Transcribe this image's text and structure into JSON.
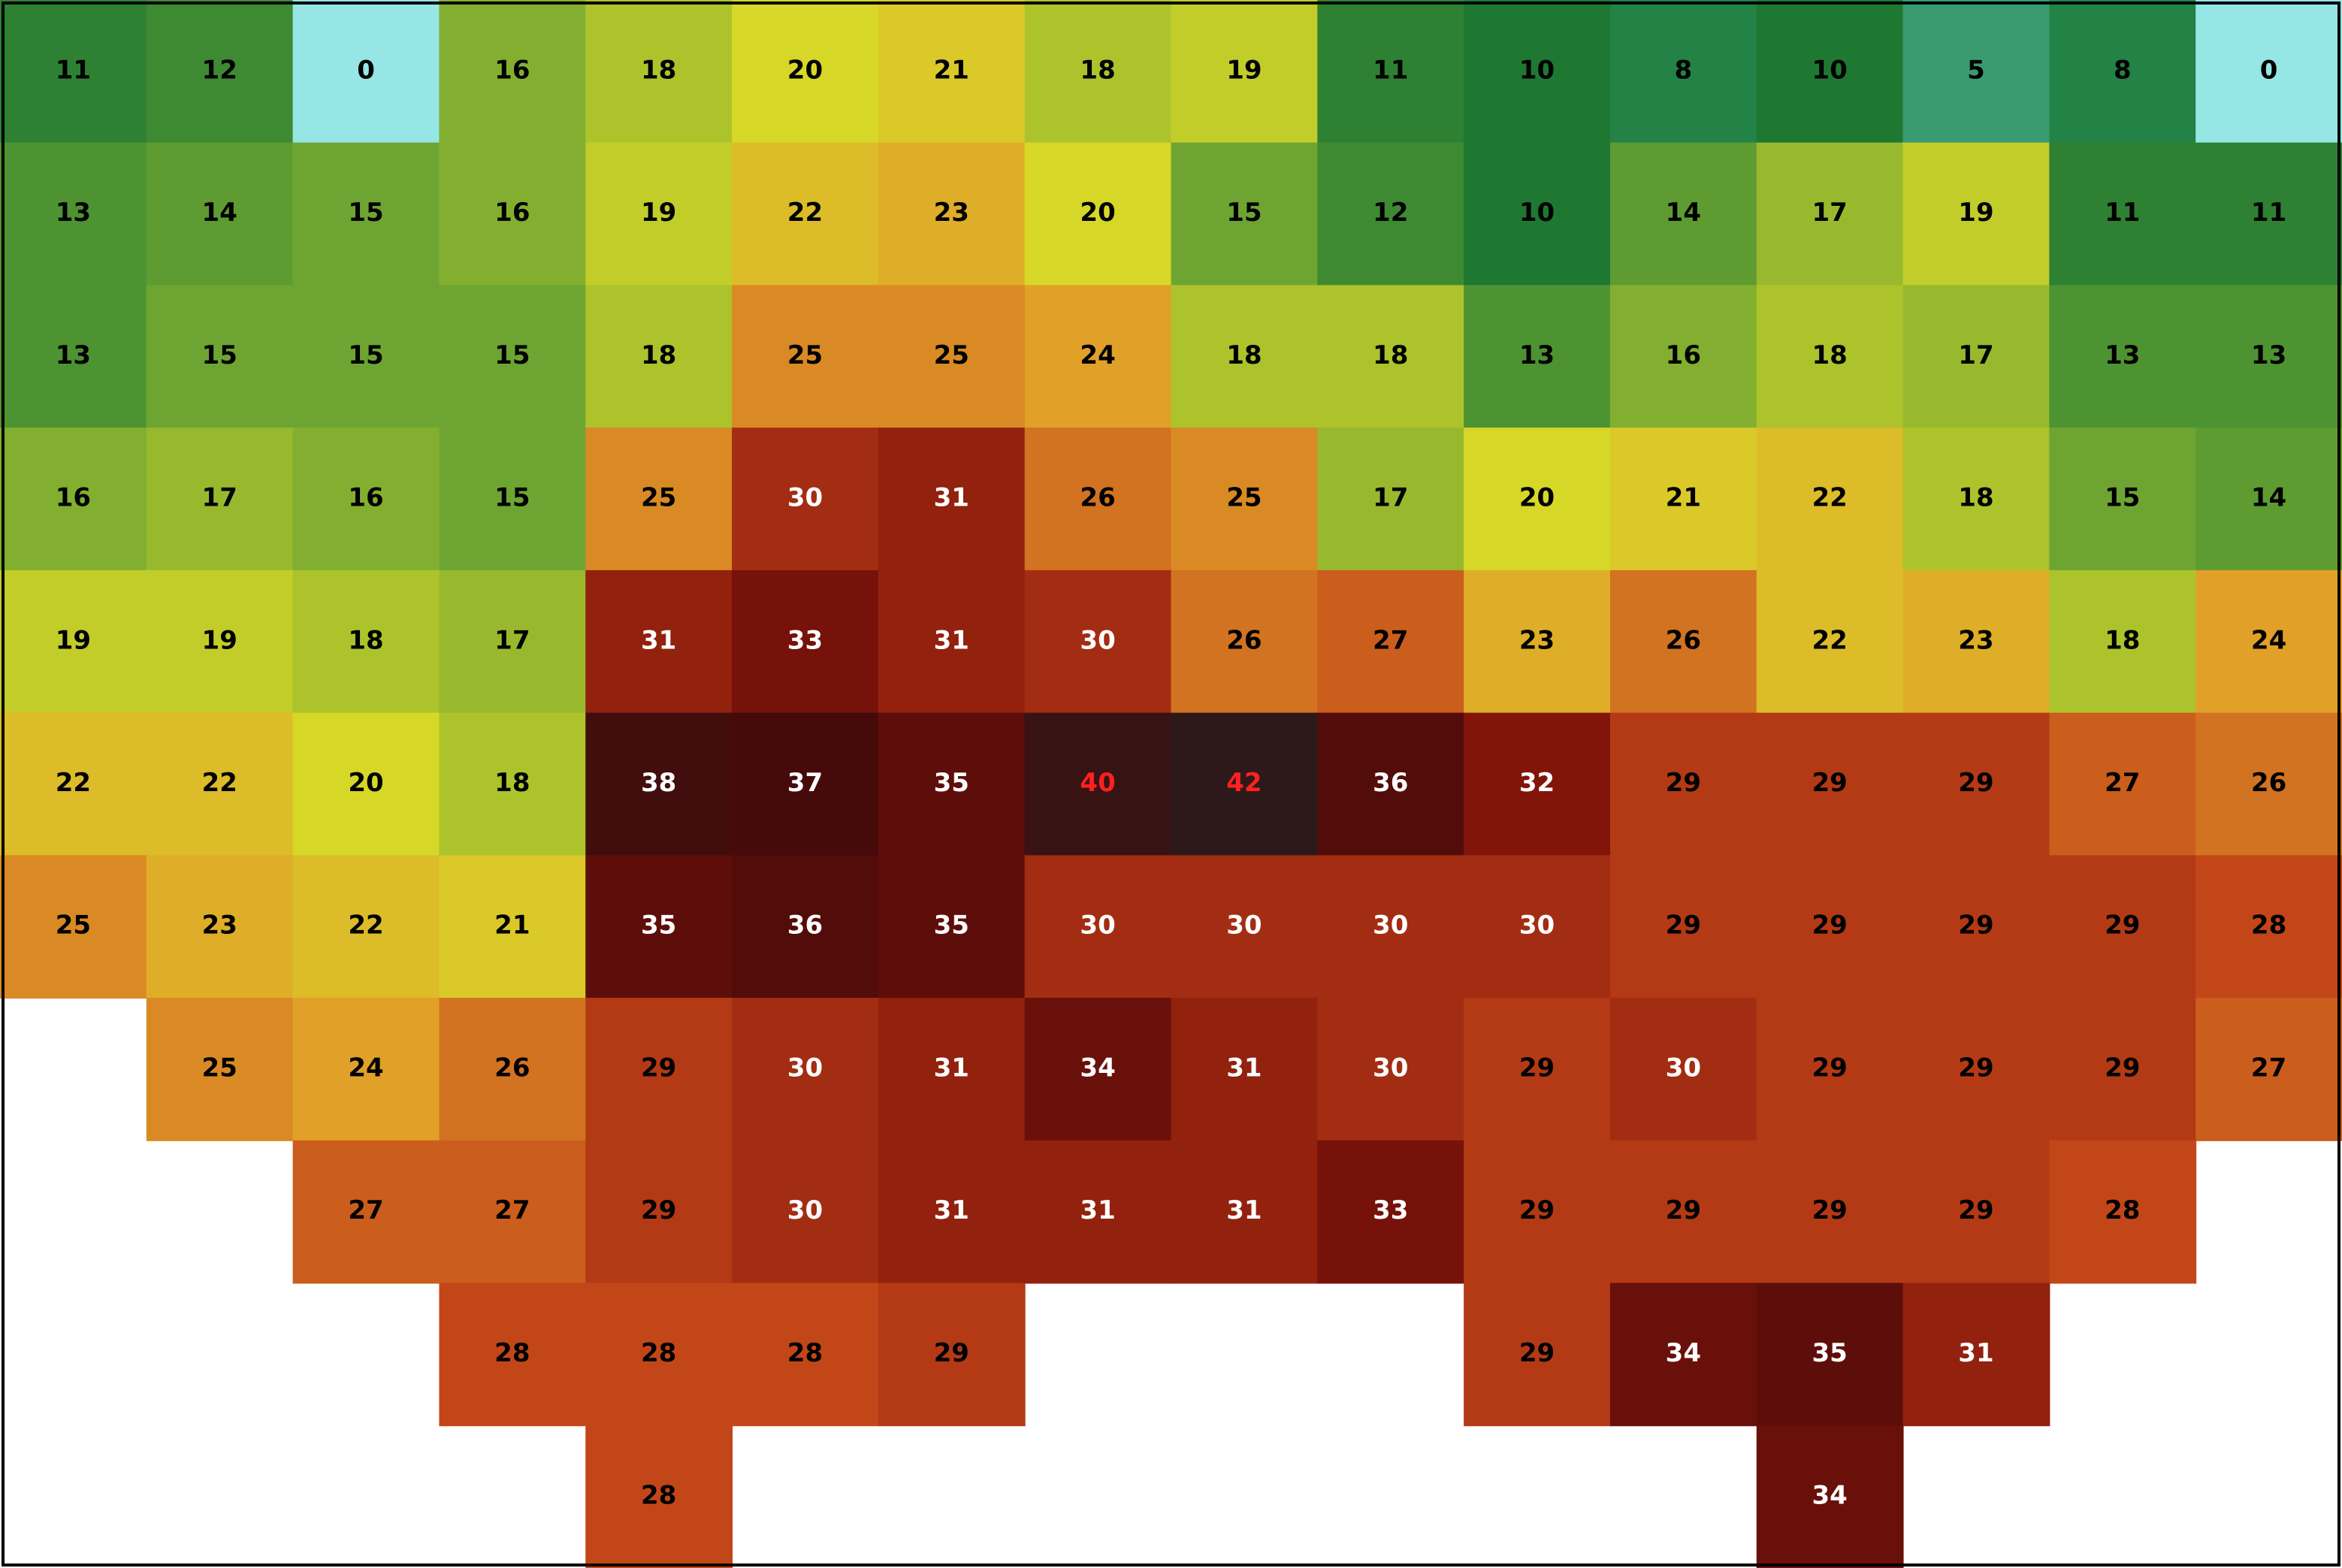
{
  "chart_data": {
    "type": "heatmap",
    "values": [
      [
        11,
        12,
        0,
        16,
        18,
        20,
        21,
        18,
        19,
        11,
        10,
        8,
        10,
        5,
        8,
        0
      ],
      [
        13,
        14,
        15,
        16,
        19,
        22,
        23,
        20,
        15,
        12,
        10,
        14,
        17,
        19,
        11,
        11
      ],
      [
        13,
        15,
        15,
        15,
        18,
        25,
        25,
        24,
        18,
        18,
        13,
        16,
        18,
        17,
        13,
        13
      ],
      [
        16,
        17,
        16,
        15,
        25,
        30,
        31,
        26,
        25,
        17,
        20,
        21,
        22,
        18,
        15,
        14
      ],
      [
        19,
        19,
        18,
        17,
        31,
        33,
        31,
        30,
        26,
        27,
        23,
        26,
        22,
        23,
        18,
        24
      ],
      [
        22,
        22,
        20,
        18,
        38,
        37,
        35,
        40,
        42,
        36,
        32,
        29,
        29,
        29,
        27,
        26
      ],
      [
        25,
        23,
        22,
        21,
        35,
        36,
        35,
        30,
        30,
        30,
        30,
        29,
        29,
        29,
        29,
        28
      ],
      [
        null,
        25,
        24,
        26,
        29,
        30,
        31,
        34,
        31,
        30,
        29,
        30,
        29,
        29,
        29,
        27
      ],
      [
        null,
        null,
        27,
        27,
        29,
        30,
        31,
        31,
        31,
        33,
        29,
        29,
        29,
        29,
        28,
        null
      ],
      [
        null,
        null,
        null,
        28,
        28,
        28,
        29,
        null,
        null,
        null,
        29,
        34,
        35,
        31,
        null,
        null
      ],
      [
        null,
        null,
        null,
        null,
        28,
        null,
        null,
        null,
        null,
        null,
        null,
        null,
        34,
        null,
        null,
        null
      ]
    ]
  }
}
